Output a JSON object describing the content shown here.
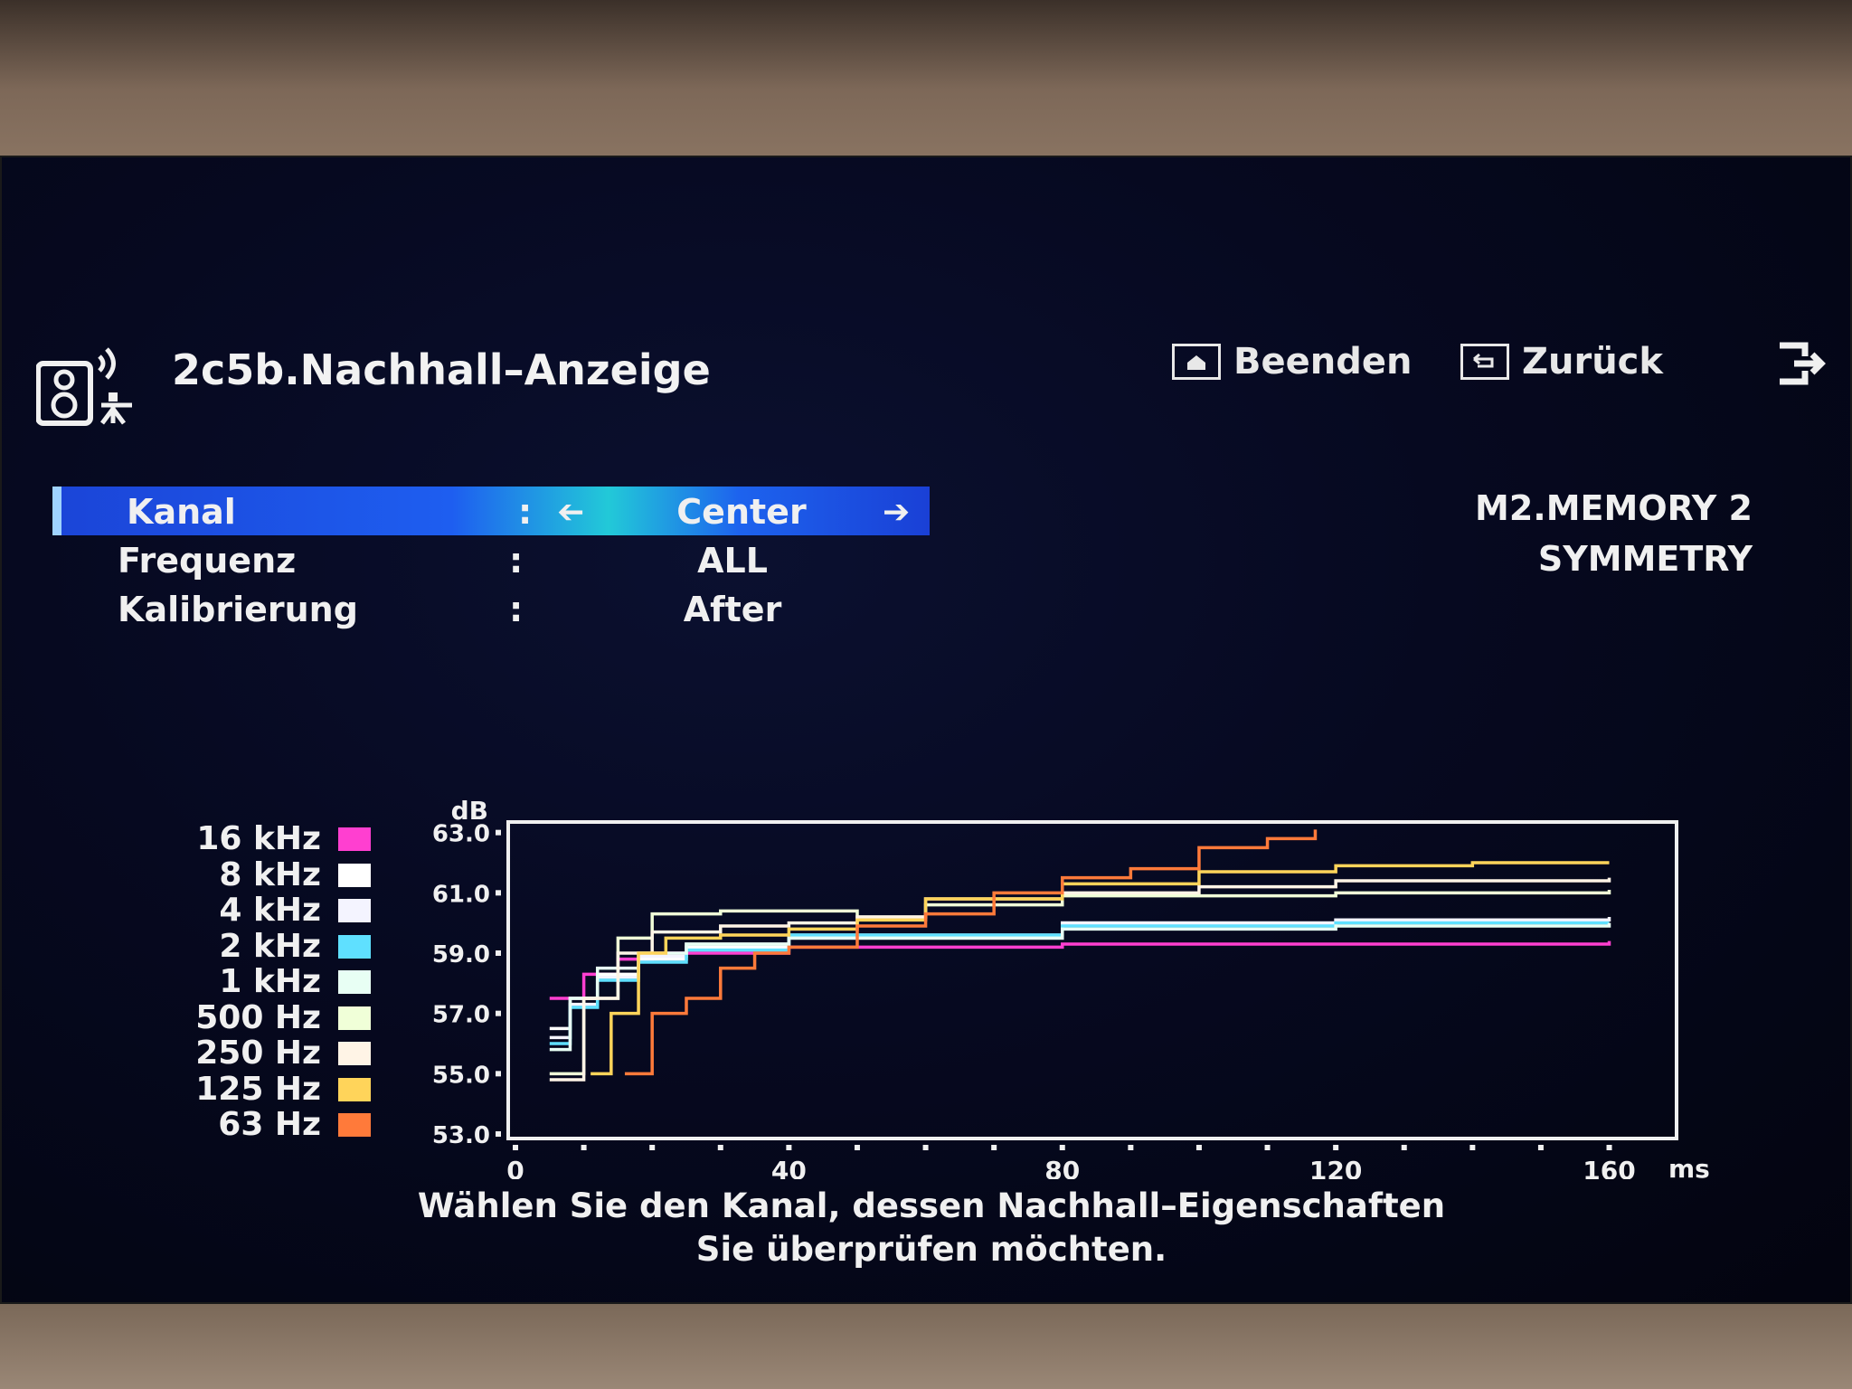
{
  "header": {
    "title": "2c5b.Nachhall–Anzeige",
    "exit_label": "Beenden",
    "back_label": "Zurück"
  },
  "menu": {
    "rows": [
      {
        "label": "Kanal",
        "colon": ":",
        "value": "Center",
        "selected": true
      },
      {
        "label": "Frequenz",
        "colon": ":",
        "value": "ALL",
        "selected": false
      },
      {
        "label": "Kalibrierung",
        "colon": ":",
        "value": "After",
        "selected": false
      }
    ]
  },
  "memory": {
    "line1": "M2.MEMORY 2",
    "line2": "SYMMETRY"
  },
  "legend": [
    {
      "label": "16 kHz",
      "color": "#ff3fd0"
    },
    {
      "label": "8 kHz",
      "color": "#ffffff"
    },
    {
      "label": "4 kHz",
      "color": "#f4f4ff"
    },
    {
      "label": "2 kHz",
      "color": "#5fe0ff"
    },
    {
      "label": "1 kHz",
      "color": "#e8fff4"
    },
    {
      "label": "500 Hz",
      "color": "#f0ffd8"
    },
    {
      "label": "250 Hz",
      "color": "#fff4e6"
    },
    {
      "label": "125 Hz",
      "color": "#ffd45a"
    },
    {
      "label": "63 Hz",
      "color": "#ff7a3a"
    }
  ],
  "chart_data": {
    "type": "line",
    "ylabel": "dB",
    "xunit": "ms",
    "xlim": [
      0,
      168
    ],
    "ylim": [
      53,
      63.2
    ],
    "yticks": [
      63.0,
      61.0,
      59.0,
      57.0,
      55.0,
      53.0
    ],
    "ytick_labels": [
      "63.0",
      "61.0",
      "59.0",
      "57.0",
      "55.0",
      "53.0"
    ],
    "xticks": [
      0,
      40,
      80,
      120,
      160
    ],
    "xtick_labels": [
      "0",
      "40",
      "80",
      "120",
      "160"
    ],
    "series": [
      {
        "name": "16 kHz",
        "color": "#ff3fd0",
        "x": [
          5,
          10,
          15,
          20,
          40,
          80,
          120,
          160
        ],
        "y": [
          57.5,
          58.3,
          58.8,
          59.0,
          59.2,
          59.3,
          59.3,
          59.4
        ]
      },
      {
        "name": "8 kHz",
        "color": "#ffffff",
        "x": [
          5,
          8,
          12,
          18,
          25,
          40,
          80,
          120,
          160
        ],
        "y": [
          56.5,
          57.5,
          58.3,
          58.8,
          59.2,
          59.5,
          60.0,
          60.1,
          60.1
        ]
      },
      {
        "name": "4 kHz",
        "color": "#f4f4ff",
        "x": [
          5,
          8,
          12,
          18,
          25,
          40,
          80,
          120,
          160
        ],
        "y": [
          56.2,
          57.3,
          58.2,
          58.9,
          59.3,
          59.6,
          60.0,
          60.1,
          60.2
        ]
      },
      {
        "name": "2 kHz",
        "color": "#5fe0ff",
        "x": [
          5,
          8,
          12,
          18,
          25,
          40,
          80,
          120,
          160
        ],
        "y": [
          56.0,
          57.2,
          58.1,
          58.7,
          59.1,
          59.6,
          59.9,
          60.0,
          60.0
        ]
      },
      {
        "name": "1 kHz",
        "color": "#e8fff4",
        "x": [
          5,
          8,
          12,
          18,
          25,
          40,
          80,
          120,
          160
        ],
        "y": [
          55.8,
          57.5,
          58.5,
          59.0,
          59.3,
          59.5,
          59.8,
          59.9,
          60.0
        ]
      },
      {
        "name": "500 Hz",
        "color": "#f0ffd8",
        "x": [
          5,
          10,
          15,
          20,
          30,
          40,
          50,
          60,
          80,
          120,
          160
        ],
        "y": [
          55.0,
          57.5,
          59.5,
          60.3,
          60.4,
          60.4,
          60.2,
          60.6,
          60.9,
          61.0,
          61.1
        ]
      },
      {
        "name": "250 Hz",
        "color": "#fff4e6",
        "x": [
          5,
          10,
          15,
          20,
          30,
          40,
          50,
          60,
          80,
          100,
          120,
          160
        ],
        "y": [
          54.8,
          57.5,
          59.0,
          59.7,
          59.9,
          60.0,
          60.2,
          60.8,
          61.0,
          61.2,
          61.4,
          61.5
        ]
      },
      {
        "name": "125 Hz",
        "color": "#ffd45a",
        "x": [
          11,
          14,
          18,
          22,
          30,
          40,
          50,
          60,
          80,
          100,
          120,
          140,
          160
        ],
        "y": [
          55.0,
          57.0,
          59.0,
          59.5,
          59.6,
          59.8,
          60.1,
          60.8,
          61.3,
          61.7,
          61.9,
          62.0,
          62.0
        ]
      },
      {
        "name": "63 Hz",
        "color": "#ff7a3a",
        "x": [
          16,
          20,
          25,
          30,
          35,
          40,
          50,
          60,
          70,
          80,
          90,
          100,
          110,
          117
        ],
        "y": [
          55.0,
          57.0,
          57.5,
          58.5,
          59.0,
          59.2,
          59.9,
          60.3,
          61.0,
          61.5,
          61.8,
          62.5,
          62.8,
          63.1
        ]
      }
    ]
  },
  "footer": {
    "line1": "Wählen Sie den Kanal, dessen Nachhall–Eigenschaften",
    "line2": "Sie überprüfen möchten."
  }
}
